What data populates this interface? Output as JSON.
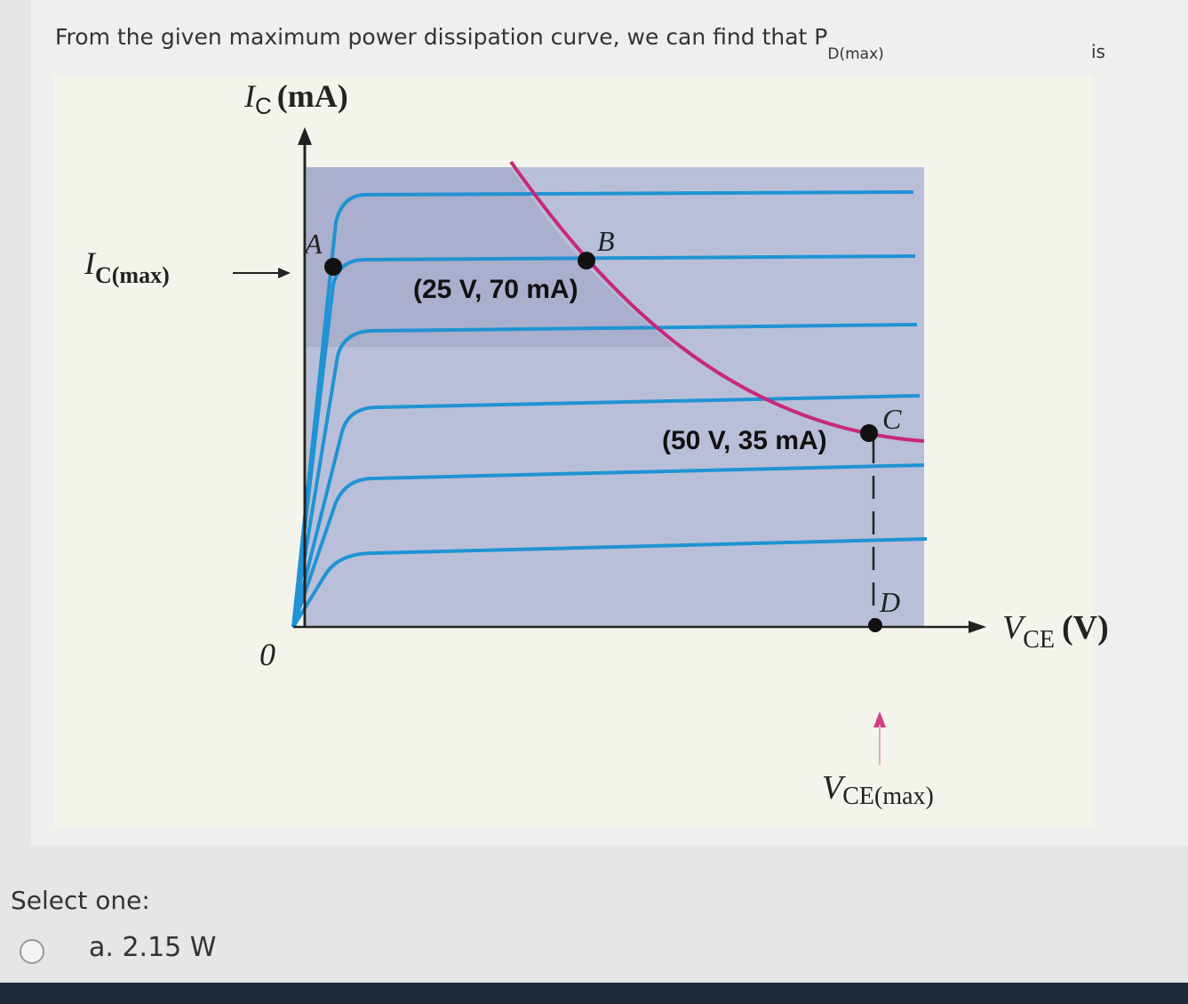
{
  "question": {
    "text": "From the given maximum power dissipation curve, we can find that P",
    "subscript": "D(max)",
    "suffix": "is"
  },
  "diagram": {
    "y_axis": {
      "symbol": "I",
      "subscript": "C",
      "unit": "(mA)"
    },
    "ic_max": {
      "symbol": "I",
      "subscript": "C(max)"
    },
    "origin": "0",
    "x_axis": {
      "symbol": "V",
      "subscript": "CE",
      "unit": "(V)"
    },
    "vce_max": {
      "symbol": "V",
      "subscript": "CE(max)"
    },
    "points": [
      "A",
      "B",
      "C",
      "D"
    ],
    "coordinates": [
      "(25 V, 70 mA)",
      "(50 V, 35 mA)"
    ]
  },
  "prompt": "Select one:",
  "options": [
    "a. 2.15 W"
  ]
}
